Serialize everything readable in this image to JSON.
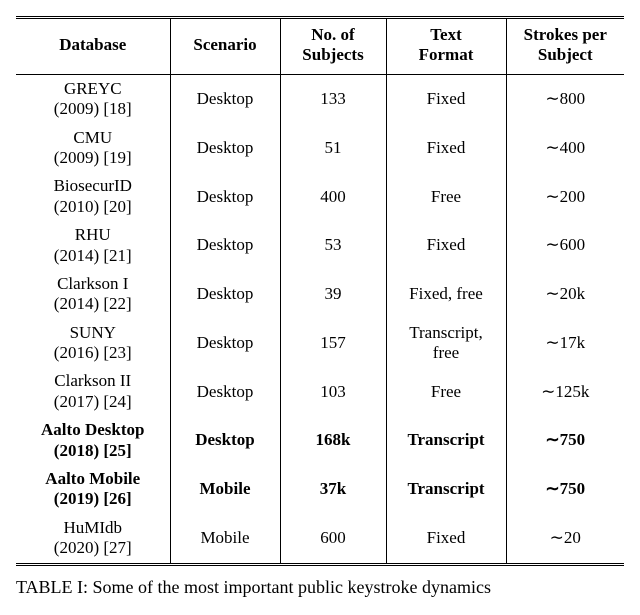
{
  "cols": {
    "c0": "Database",
    "c1": "Scenario",
    "c2_l1": "No. of",
    "c2_l2": "Subjects",
    "c3_l1": "Text",
    "c3_l2": "Format",
    "c4_l1": "Strokes per",
    "c4_l2": "Subject"
  },
  "widths": {
    "c0": 154,
    "c1": 110,
    "c2": 106,
    "c3": 120,
    "c4": 118
  },
  "rows": [
    {
      "name": "GREYC",
      "yr": "(2009) [18]",
      "scenario": "Desktop",
      "subjects": "133",
      "format": "Fixed",
      "strokes": "∼800",
      "bold": false
    },
    {
      "name": "CMU",
      "yr": "(2009) [19]",
      "scenario": "Desktop",
      "subjects": "51",
      "format": "Fixed",
      "strokes": "∼400",
      "bold": false
    },
    {
      "name": "BiosecurID",
      "yr": "(2010) [20]",
      "scenario": "Desktop",
      "subjects": "400",
      "format": "Free",
      "strokes": "∼200",
      "bold": false
    },
    {
      "name": "RHU",
      "yr": "(2014) [21]",
      "scenario": "Desktop",
      "subjects": "53",
      "format": "Fixed",
      "strokes": "∼600",
      "bold": false
    },
    {
      "name": "Clarkson I",
      "yr": "(2014) [22]",
      "scenario": "Desktop",
      "subjects": "39",
      "format": "Fixed, free",
      "strokes": "∼20k",
      "bold": false
    },
    {
      "name": "SUNY",
      "yr": "(2016) [23]",
      "scenario": "Desktop",
      "subjects": "157",
      "format": "Transcript,\nfree",
      "strokes": "∼17k",
      "bold": false
    },
    {
      "name": "Clarkson II",
      "yr": "(2017) [24]",
      "scenario": "Desktop",
      "subjects": "103",
      "format": "Free",
      "strokes": "∼125k",
      "bold": false
    },
    {
      "name": "Aalto Desktop",
      "yr": "(2018) [25]",
      "scenario": "Desktop",
      "subjects": "168k",
      "format": "Transcript",
      "strokes": "∼750",
      "bold": true
    },
    {
      "name": "Aalto Mobile",
      "yr": "(2019) [26]",
      "scenario": "Mobile",
      "subjects": "37k",
      "format": "Transcript",
      "strokes": "∼750",
      "bold": true
    },
    {
      "name": "HuMIdb",
      "yr": "(2020) [27]",
      "scenario": "Mobile",
      "subjects": "600",
      "format": "Fixed",
      "strokes": "∼20",
      "bold": false
    }
  ],
  "caption": {
    "label": "TABLE I:",
    "text": " Some of the most important public keystroke dynamics"
  }
}
